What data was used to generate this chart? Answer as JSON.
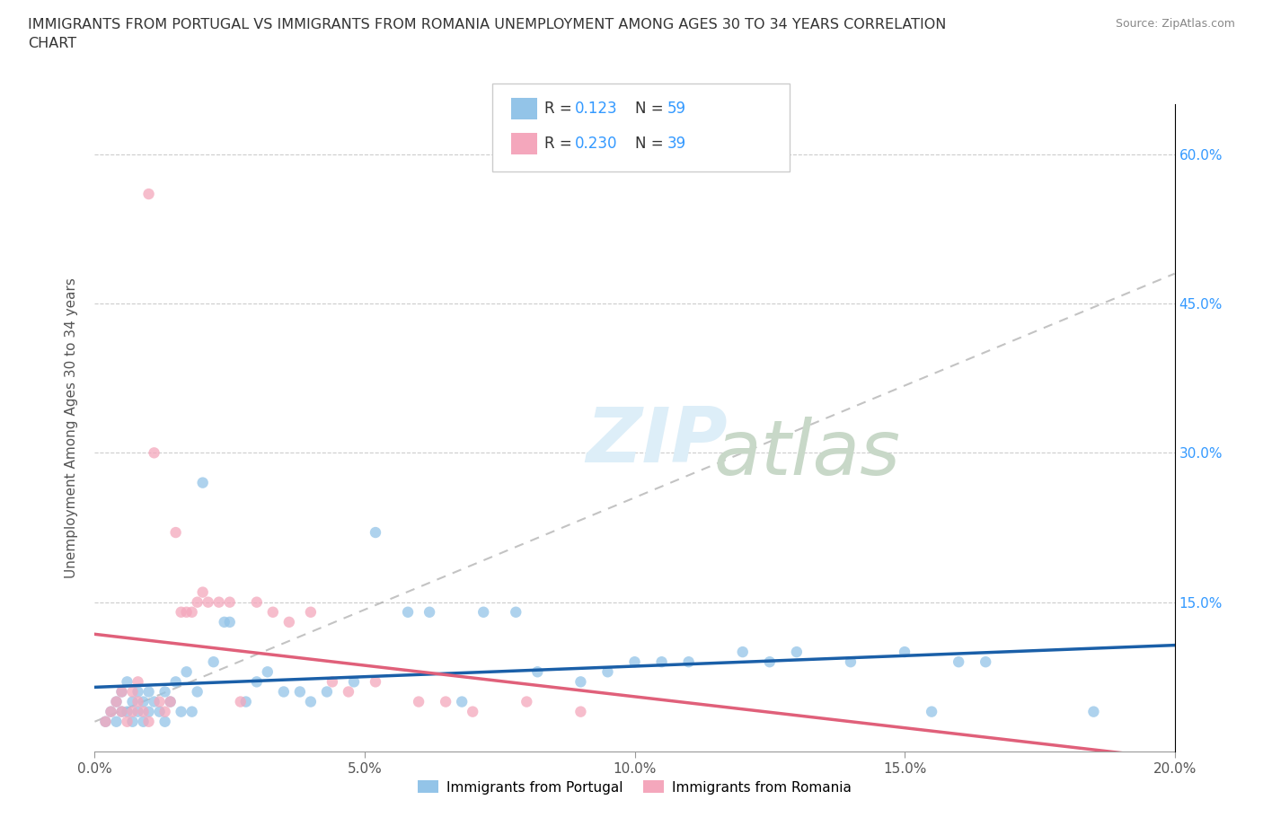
{
  "title_line1": "IMMIGRANTS FROM PORTUGAL VS IMMIGRANTS FROM ROMANIA UNEMPLOYMENT AMONG AGES 30 TO 34 YEARS CORRELATION",
  "title_line2": "CHART",
  "source_text": "Source: ZipAtlas.com",
  "ylabel": "Unemployment Among Ages 30 to 34 years",
  "xlim": [
    0.0,
    0.2
  ],
  "ylim": [
    0.0,
    0.65
  ],
  "xticks": [
    0.0,
    0.05,
    0.1,
    0.15,
    0.2
  ],
  "xticklabels": [
    "0.0%",
    "5.0%",
    "10.0%",
    "15.0%",
    "20.0%"
  ],
  "ytick_positions": [
    0.15,
    0.3,
    0.45,
    0.6
  ],
  "ytick_labels": [
    "15.0%",
    "30.0%",
    "45.0%",
    "60.0%"
  ],
  "portugal_color": "#93c4e8",
  "romania_color": "#f4a7bc",
  "portugal_line_color": "#1a5fa8",
  "romania_line_color": "#e0607a",
  "portugal_R": 0.123,
  "portugal_N": 59,
  "romania_R": 0.23,
  "romania_N": 39,
  "background_color": "#ffffff",
  "grid_color": "#cccccc",
  "portugal_scatter_x": [
    0.002,
    0.003,
    0.004,
    0.004,
    0.005,
    0.005,
    0.006,
    0.006,
    0.007,
    0.007,
    0.008,
    0.008,
    0.009,
    0.009,
    0.01,
    0.01,
    0.011,
    0.012,
    0.013,
    0.013,
    0.014,
    0.015,
    0.016,
    0.017,
    0.018,
    0.019,
    0.02,
    0.022,
    0.024,
    0.025,
    0.028,
    0.03,
    0.032,
    0.035,
    0.038,
    0.04,
    0.043,
    0.048,
    0.052,
    0.058,
    0.062,
    0.068,
    0.072,
    0.078,
    0.082,
    0.09,
    0.095,
    0.1,
    0.105,
    0.11,
    0.12,
    0.125,
    0.13,
    0.14,
    0.15,
    0.155,
    0.16,
    0.165,
    0.185
  ],
  "portugal_scatter_y": [
    0.03,
    0.04,
    0.05,
    0.03,
    0.04,
    0.06,
    0.04,
    0.07,
    0.03,
    0.05,
    0.04,
    0.06,
    0.03,
    0.05,
    0.04,
    0.06,
    0.05,
    0.04,
    0.06,
    0.03,
    0.05,
    0.07,
    0.04,
    0.08,
    0.04,
    0.06,
    0.27,
    0.09,
    0.13,
    0.13,
    0.05,
    0.07,
    0.08,
    0.06,
    0.06,
    0.05,
    0.06,
    0.07,
    0.22,
    0.14,
    0.14,
    0.05,
    0.14,
    0.14,
    0.08,
    0.07,
    0.08,
    0.09,
    0.09,
    0.09,
    0.1,
    0.09,
    0.1,
    0.09,
    0.1,
    0.04,
    0.09,
    0.09,
    0.04
  ],
  "romania_scatter_x": [
    0.002,
    0.003,
    0.004,
    0.005,
    0.005,
    0.006,
    0.007,
    0.007,
    0.008,
    0.008,
    0.009,
    0.01,
    0.01,
    0.011,
    0.012,
    0.013,
    0.014,
    0.015,
    0.016,
    0.017,
    0.018,
    0.019,
    0.02,
    0.021,
    0.023,
    0.025,
    0.027,
    0.03,
    0.033,
    0.036,
    0.04,
    0.044,
    0.047,
    0.052,
    0.06,
    0.065,
    0.07,
    0.08,
    0.09
  ],
  "romania_scatter_y": [
    0.03,
    0.04,
    0.05,
    0.04,
    0.06,
    0.03,
    0.04,
    0.06,
    0.05,
    0.07,
    0.04,
    0.56,
    0.03,
    0.3,
    0.05,
    0.04,
    0.05,
    0.22,
    0.14,
    0.14,
    0.14,
    0.15,
    0.16,
    0.15,
    0.15,
    0.15,
    0.05,
    0.15,
    0.14,
    0.13,
    0.14,
    0.07,
    0.06,
    0.07,
    0.05,
    0.05,
    0.04,
    0.05,
    0.04
  ]
}
